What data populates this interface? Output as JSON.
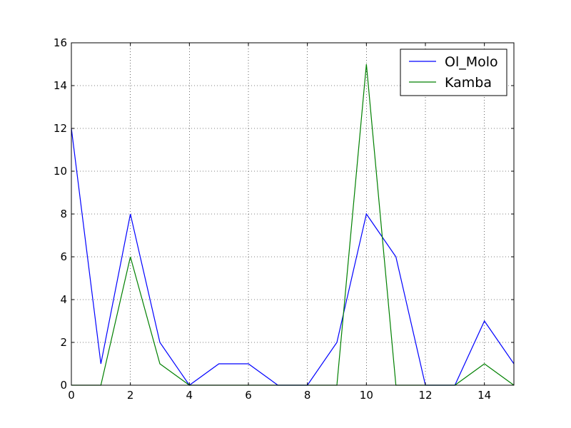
{
  "chart_data": {
    "type": "line",
    "title": "",
    "xlabel": "",
    "ylabel": "",
    "xlim": [
      0,
      15
    ],
    "ylim": [
      0,
      16
    ],
    "x_ticks": [
      0,
      2,
      4,
      6,
      8,
      10,
      12,
      14
    ],
    "y_ticks": [
      0,
      2,
      4,
      6,
      8,
      10,
      12,
      14,
      16
    ],
    "x_tick_labels": [
      "0",
      "2",
      "4",
      "6",
      "8",
      "10",
      "12",
      "14"
    ],
    "y_tick_labels": [
      "0",
      "2",
      "4",
      "6",
      "8",
      "10",
      "12",
      "14",
      "16"
    ],
    "grid": true,
    "legend_position": "top-right",
    "x": [
      0,
      1,
      2,
      3,
      4,
      5,
      6,
      7,
      8,
      9,
      10,
      11,
      12,
      13,
      14,
      15
    ],
    "series": [
      {
        "name": "Ol_Molo",
        "color": "#0000ff",
        "values": [
          12,
          1,
          8,
          2,
          0,
          1,
          1,
          0,
          0,
          2,
          8,
          6,
          0,
          0,
          3,
          1
        ]
      },
      {
        "name": "Kamba",
        "color": "#008000",
        "values": [
          0,
          0,
          6,
          1,
          0,
          0,
          0,
          0,
          0,
          0,
          15,
          0,
          0,
          0,
          1,
          0
        ]
      }
    ]
  }
}
